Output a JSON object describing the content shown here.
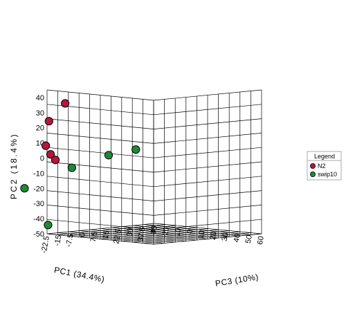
{
  "chart_data": {
    "type": "scatter",
    "projection": "3d",
    "axes": {
      "x": {
        "label": "PC1 (34.4%)",
        "ticks": [
          -30,
          -20,
          -10,
          0,
          10,
          20,
          30,
          40,
          50,
          60
        ],
        "range": [
          -30,
          60
        ]
      },
      "y": {
        "label": "PC2 (18.4%)",
        "ticks": [
          -50,
          -40,
          -30,
          -20,
          -10,
          0,
          10,
          20,
          30,
          40
        ],
        "range": [
          -50,
          45
        ]
      },
      "z": {
        "label": "PC3 (10%)",
        "ticks": [
          "-22.5",
          "-15",
          "-7.5",
          "0",
          "7.5",
          "15",
          "22.5",
          "30",
          "37.5",
          "45"
        ],
        "range": [
          -22.5,
          45
        ]
      }
    },
    "grid": true,
    "legend": {
      "title": "Legend",
      "placement": "right"
    },
    "series": [
      {
        "name": "N2",
        "color": "#b5163c",
        "points": [
          {
            "pc1": -10,
            "pc2": 38,
            "pc3": -26
          },
          {
            "pc1": -25,
            "pc2": 25,
            "pc3": -25
          },
          {
            "pc1": -25,
            "pc2": 9,
            "pc3": -27
          },
          {
            "pc1": -25,
            "pc2": 3,
            "pc3": -24
          },
          {
            "pc1": -25,
            "pc2": -1,
            "pc3": -21
          }
        ]
      },
      {
        "name": "swip10",
        "color": "#1f8a36",
        "points": [
          {
            "pc1": -30,
            "pc2": -8,
            "pc3": -7
          },
          {
            "pc1": -30,
            "pc2": -2,
            "pc3": 16
          },
          {
            "pc1": -30,
            "pc2": 0,
            "pc3": 33
          },
          {
            "pc1": -20,
            "pc2": -17,
            "pc3": -44
          },
          {
            "pc1": -15,
            "pc2": -42,
            "pc3": -33
          }
        ]
      }
    ]
  }
}
